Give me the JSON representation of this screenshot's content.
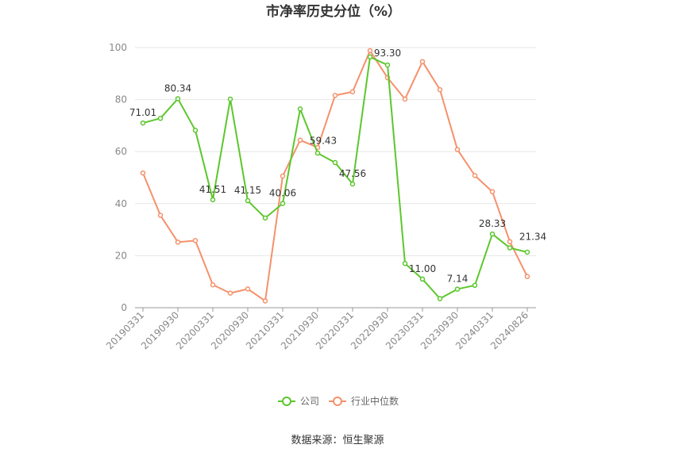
{
  "chart_data": {
    "type": "line",
    "title": "市净率历史分位（%）",
    "xlabel": "",
    "ylabel": "",
    "ylim": [
      0,
      100
    ],
    "yticks": [
      0,
      20,
      40,
      60,
      80,
      100
    ],
    "grid": true,
    "legend_position": "bottom-center",
    "x": [
      "20190331",
      "20190630",
      "20190930",
      "20191231",
      "20200331",
      "20200630",
      "20200930",
      "20201231",
      "20210331",
      "20210630",
      "20210930",
      "20211231",
      "20220331",
      "20220630",
      "20220930",
      "20221231",
      "20230331",
      "20230630",
      "20230930",
      "20231231",
      "20240331",
      "20240630",
      "20240826"
    ],
    "x_tick_labels": [
      "20190331",
      "20190930",
      "20200331",
      "20200930",
      "20210331",
      "20210930",
      "20220331",
      "20220930",
      "20230331",
      "20230930",
      "20240331",
      "20240826"
    ],
    "series": [
      {
        "name": "公司",
        "color": "#5cc72c",
        "values": [
          71.01,
          72.8,
          80.34,
          68.2,
          41.51,
          80.2,
          41.15,
          34.5,
          40.06,
          76.4,
          59.43,
          55.8,
          47.56,
          96.4,
          93.3,
          17.0,
          11.0,
          3.5,
          7.14,
          8.6,
          28.33,
          23.0,
          21.34
        ],
        "labels": {
          "0": "71.01",
          "2": "80.34",
          "4": "41.51",
          "6": "41.15",
          "8": "40.06",
          "10": "59.43",
          "12": "47.56",
          "14": "93.30",
          "16": "11.00",
          "18": "7.14",
          "20": "28.33",
          "22": "21.34"
        }
      },
      {
        "name": "行业中位数",
        "color": "#f5916b",
        "values": [
          51.8,
          35.5,
          25.2,
          25.8,
          8.8,
          5.6,
          7.2,
          2.6,
          50.6,
          64.4,
          61.6,
          81.6,
          83.0,
          98.8,
          88.4,
          80.2,
          94.6,
          83.8,
          60.8,
          50.8,
          44.6,
          25.4,
          12.0
        ]
      }
    ]
  },
  "source_text": "数据来源：恒生聚源"
}
